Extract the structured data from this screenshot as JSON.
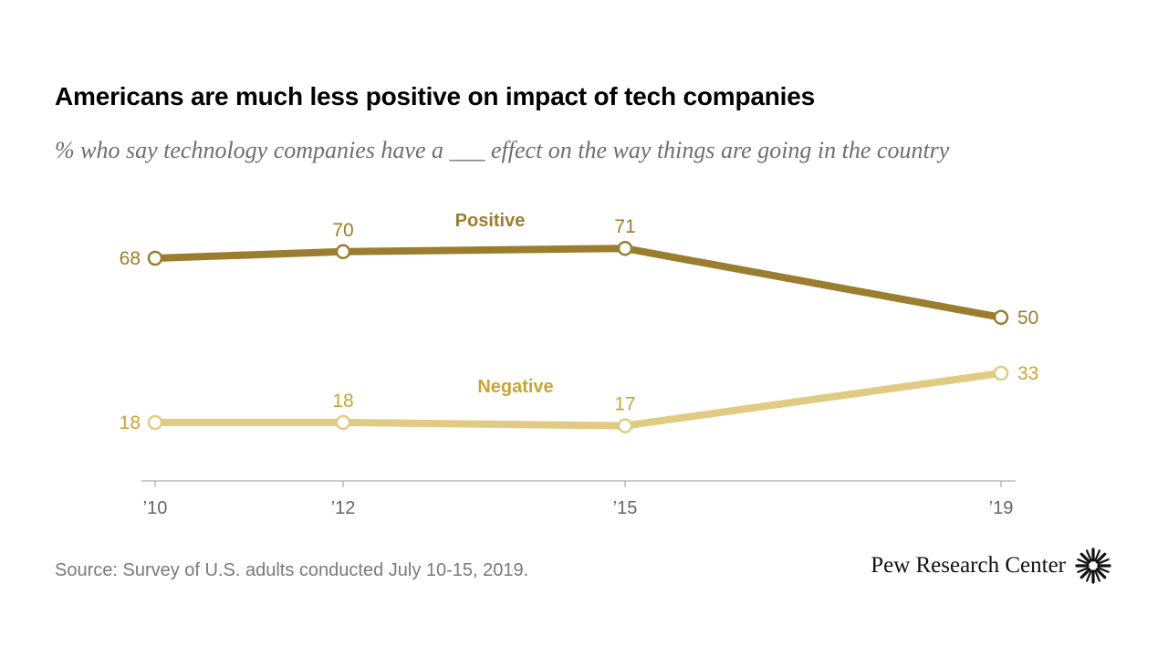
{
  "header": {
    "title": "Americans are much less positive on impact of tech companies",
    "subtitle": "% who say technology companies have a ___ effect on the way things are going in the country"
  },
  "footer": {
    "source": "Source: Survey of U.S. adults conducted July 10-15, 2019.",
    "brand": "Pew Research Center",
    "brand_icon": "pew-sunburst-logo"
  },
  "chart_data": {
    "type": "line",
    "x": [
      2010,
      2012,
      2015,
      2019
    ],
    "x_tick_labels": [
      "’10",
      "’12",
      "’15",
      "’19"
    ],
    "series": [
      {
        "name": "Positive",
        "values": [
          68,
          70,
          71,
          50
        ],
        "value_labels": [
          "68",
          "70",
          "71",
          "50"
        ],
        "color": "#9a7d2e"
      },
      {
        "name": "Negative",
        "values": [
          18,
          18,
          17,
          33
        ],
        "value_labels": [
          "18",
          "18",
          "17",
          "33"
        ],
        "color": "#e1cb82"
      }
    ],
    "xlim": [
      2010,
      2019
    ],
    "grid": false,
    "colors": {
      "positive": "#9a7d2e",
      "negative": "#e1cb82",
      "negative_label": "#c9a435",
      "axis": "#999999",
      "tick_label": "#666666"
    }
  }
}
